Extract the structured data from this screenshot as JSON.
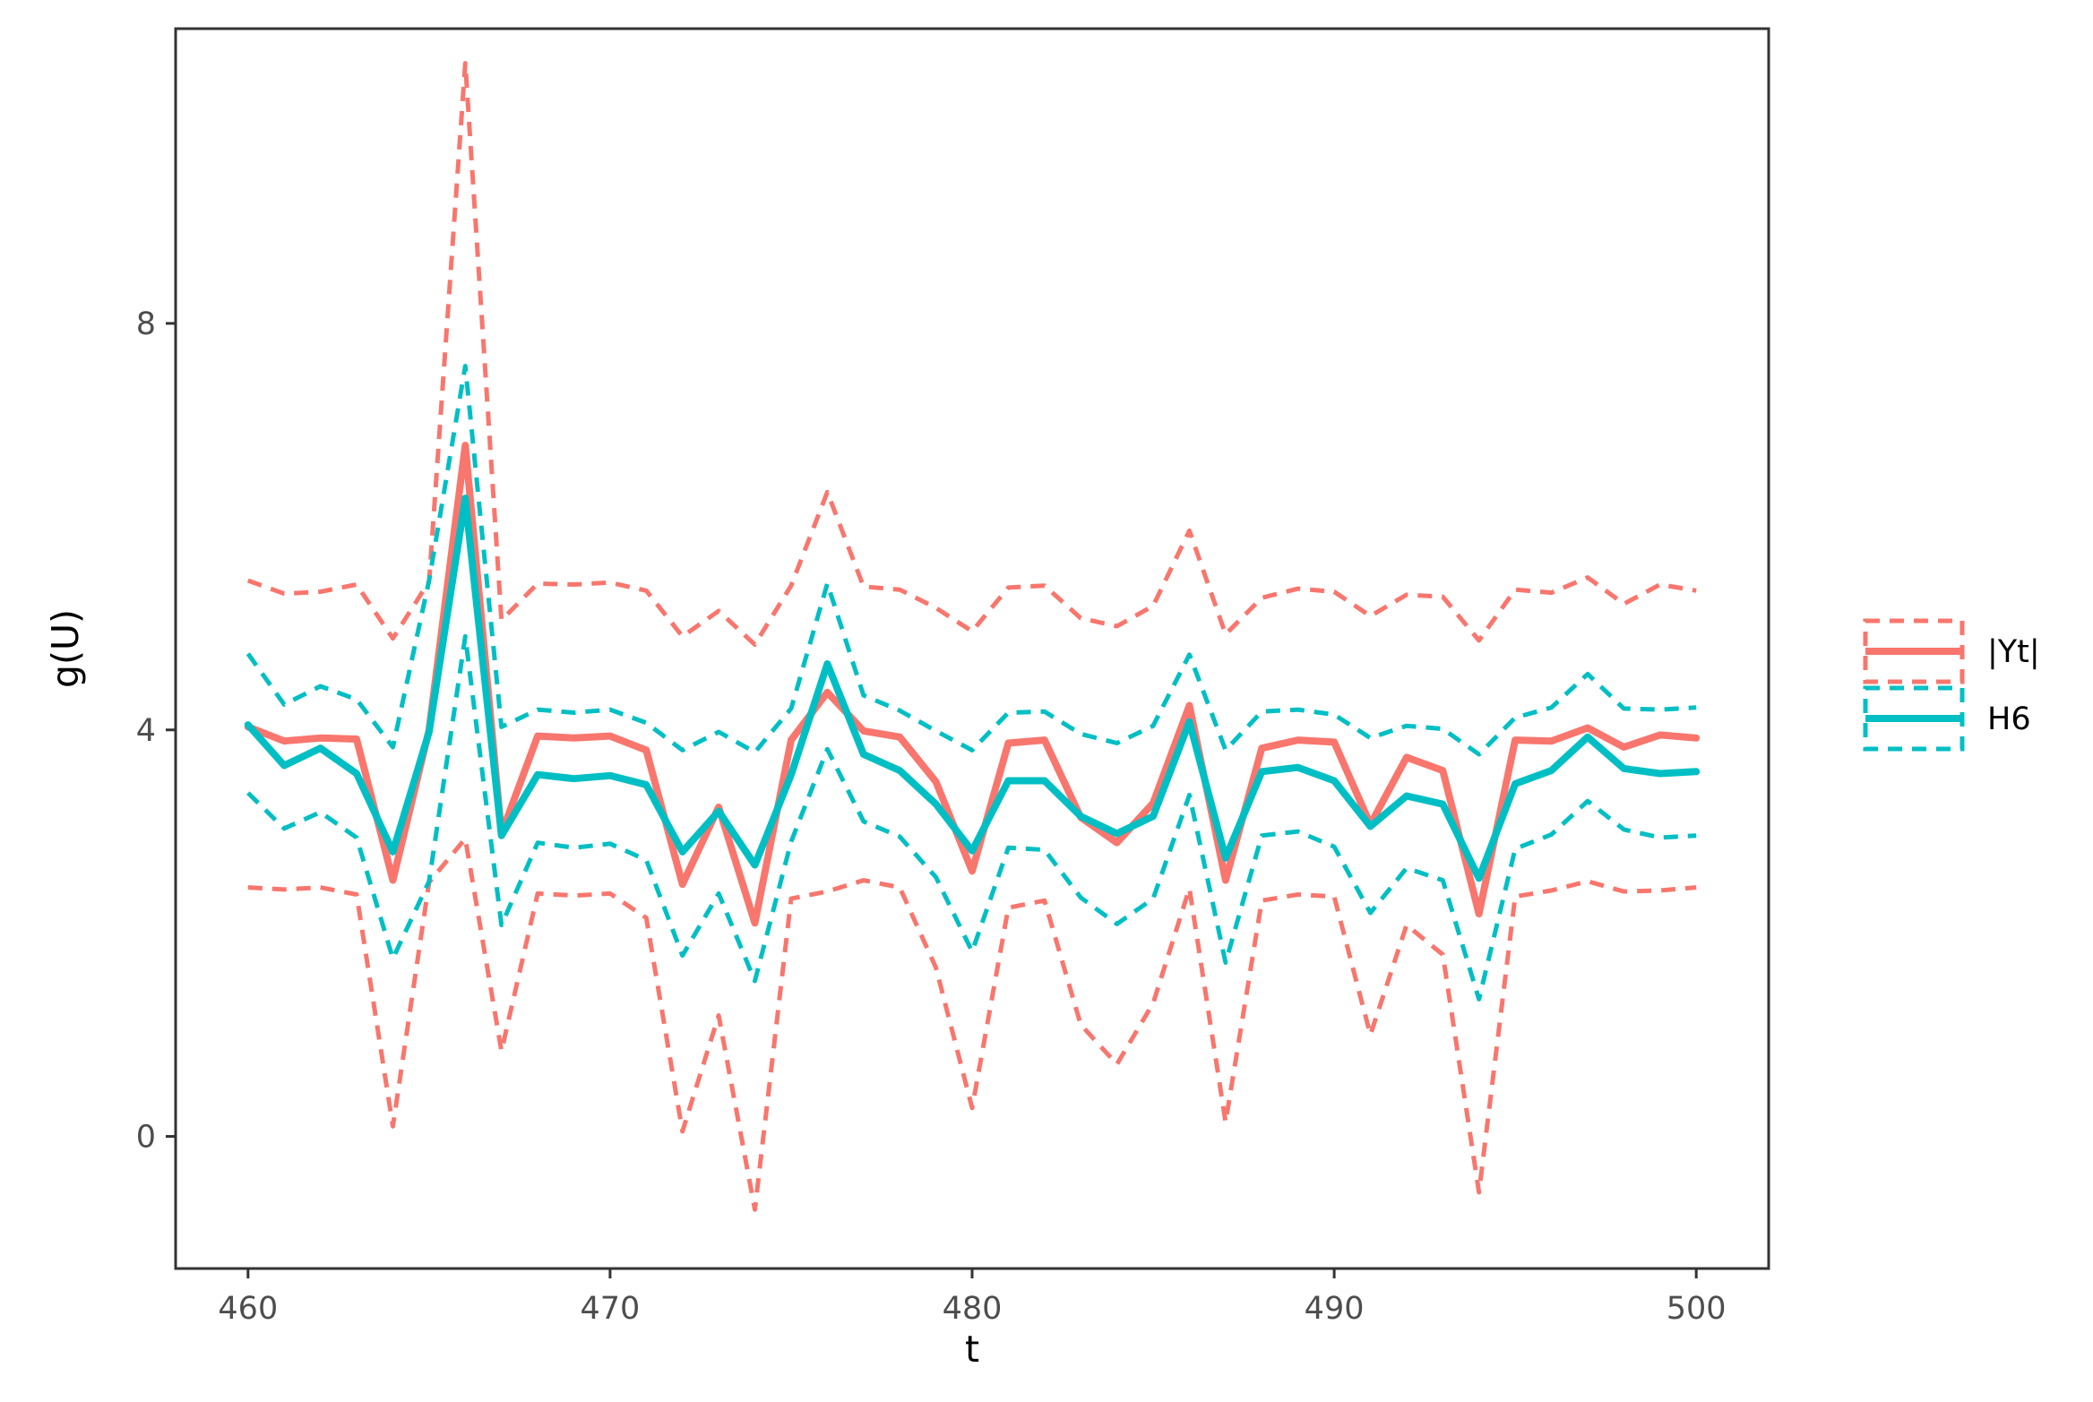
{
  "chart_data": {
    "type": "line",
    "xlabel": "t",
    "ylabel": "g(U)",
    "xlim": [
      458,
      502
    ],
    "ylim": [
      -1.3,
      10.9
    ],
    "x_ticks": [
      460,
      470,
      480,
      490,
      500
    ],
    "x_tick_labels": [
      "460",
      "470",
      "480",
      "490",
      "500"
    ],
    "y_ticks": [
      0,
      4,
      8
    ],
    "y_tick_labels": [
      "0",
      "4",
      "8"
    ],
    "grid": false,
    "legend_position": "right",
    "x": [
      460,
      461,
      462,
      463,
      464,
      465,
      466,
      467,
      468,
      469,
      470,
      471,
      472,
      473,
      474,
      475,
      476,
      477,
      478,
      479,
      480,
      481,
      482,
      483,
      484,
      485,
      486,
      487,
      488,
      489,
      490,
      491,
      492,
      493,
      494,
      495,
      496,
      497,
      498,
      499,
      500
    ],
    "series": [
      {
        "name": "|Yt|",
        "color": "#F8766D",
        "values": [
          4.03,
          3.89,
          3.92,
          3.91,
          2.52,
          4.0,
          6.8,
          2.98,
          3.94,
          3.92,
          3.94,
          3.8,
          2.48,
          3.24,
          2.1,
          3.9,
          4.37,
          3.99,
          3.93,
          3.49,
          2.61,
          3.87,
          3.9,
          3.14,
          2.89,
          3.28,
          4.24,
          2.52,
          3.82,
          3.9,
          3.88,
          3.07,
          3.73,
          3.6,
          2.19,
          3.9,
          3.89,
          4.02,
          3.83,
          3.95,
          3.92
        ],
        "upper": [
          5.47,
          5.34,
          5.36,
          5.43,
          4.9,
          5.46,
          10.56,
          5.08,
          5.44,
          5.43,
          5.45,
          5.37,
          4.92,
          5.17,
          4.84,
          5.42,
          6.34,
          5.41,
          5.38,
          5.2,
          4.97,
          5.4,
          5.42,
          5.1,
          5.02,
          5.22,
          5.96,
          4.94,
          5.3,
          5.39,
          5.36,
          5.12,
          5.33,
          5.31,
          4.88,
          5.38,
          5.35,
          5.5,
          5.24,
          5.43,
          5.37
        ],
        "lower": [
          2.45,
          2.43,
          2.45,
          2.38,
          0.1,
          2.5,
          2.93,
          0.84,
          2.39,
          2.37,
          2.39,
          2.15,
          0.05,
          1.19,
          -0.72,
          2.34,
          2.41,
          2.52,
          2.45,
          1.66,
          0.28,
          2.25,
          2.32,
          1.1,
          0.71,
          1.31,
          2.44,
          0.14,
          2.32,
          2.38,
          2.36,
          1.0,
          2.08,
          1.79,
          -0.55,
          2.36,
          2.42,
          2.51,
          2.41,
          2.42,
          2.45
        ]
      },
      {
        "name": "H6",
        "color": "#00BFC4",
        "values": [
          4.05,
          3.65,
          3.82,
          3.57,
          2.8,
          3.98,
          6.28,
          2.96,
          3.56,
          3.52,
          3.55,
          3.46,
          2.8,
          3.2,
          2.67,
          3.56,
          4.65,
          3.76,
          3.6,
          3.27,
          2.81,
          3.5,
          3.5,
          3.15,
          2.98,
          3.15,
          4.08,
          2.74,
          3.59,
          3.63,
          3.5,
          3.05,
          3.35,
          3.27,
          2.54,
          3.47,
          3.6,
          3.93,
          3.62,
          3.57,
          3.59
        ],
        "upper": [
          4.75,
          4.25,
          4.43,
          4.3,
          3.83,
          5.47,
          7.58,
          4.03,
          4.2,
          4.17,
          4.2,
          4.07,
          3.8,
          3.98,
          3.78,
          4.21,
          5.44,
          4.34,
          4.19,
          3.99,
          3.8,
          4.17,
          4.18,
          3.96,
          3.87,
          4.04,
          4.74,
          3.8,
          4.18,
          4.2,
          4.15,
          3.92,
          4.04,
          4.01,
          3.76,
          4.12,
          4.22,
          4.55,
          4.21,
          4.2,
          4.22
        ],
        "lower": [
          3.38,
          3.03,
          3.19,
          2.94,
          1.75,
          2.51,
          4.92,
          2.08,
          2.89,
          2.84,
          2.88,
          2.72,
          1.78,
          2.39,
          1.53,
          2.9,
          3.81,
          3.1,
          2.95,
          2.55,
          1.82,
          2.84,
          2.82,
          2.35,
          2.09,
          2.34,
          3.36,
          1.71,
          2.96,
          3.0,
          2.85,
          2.2,
          2.64,
          2.52,
          1.35,
          2.83,
          2.97,
          3.3,
          3.02,
          2.94,
          2.96
        ]
      }
    ]
  }
}
